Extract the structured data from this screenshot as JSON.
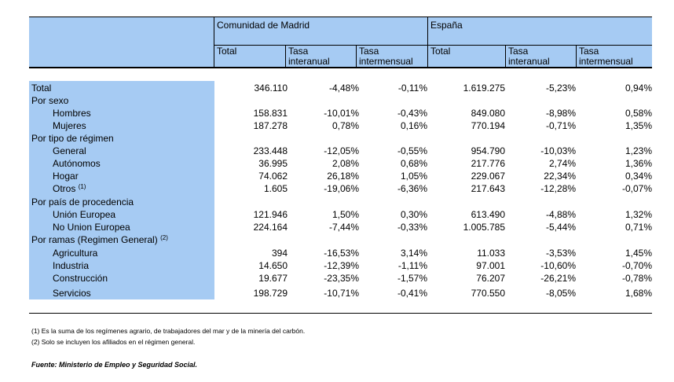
{
  "header": {
    "region1": "Comunidad de Madrid",
    "region2": "España",
    "col_total": "Total",
    "col_interanual_1": "Tasa",
    "col_interanual_2": "interanual",
    "col_intermensual_1": "Tasa",
    "col_intermensual_2": "intermensual"
  },
  "rows": [
    {
      "label": "Total",
      "sup": "",
      "values": [
        "346.110",
        "-4,48%",
        "-0,11%",
        "1.619.275",
        "-5,23%",
        "0,94%"
      ]
    },
    {
      "label": "Por sexo",
      "sup": "",
      "values": [
        "",
        "",
        "",
        "",
        "",
        ""
      ]
    },
    {
      "label": "Hombres",
      "sup": "",
      "values": [
        "158.831",
        "-10,01%",
        "-0,43%",
        "849.080",
        "-8,98%",
        "0,58%"
      ]
    },
    {
      "label": "Mujeres",
      "sup": "",
      "values": [
        "187.278",
        "0,78%",
        "0,16%",
        "770.194",
        "-0,71%",
        "1,35%"
      ]
    },
    {
      "label": "Por tipo de régimen",
      "sup": "",
      "values": [
        "",
        "",
        "",
        "",
        "",
        ""
      ]
    },
    {
      "label": "General",
      "sup": "",
      "values": [
        "233.448",
        "-12,05%",
        "-0,55%",
        "954.790",
        "-10,03%",
        "1,23%"
      ]
    },
    {
      "label": "Autónomos",
      "sup": "",
      "values": [
        "36.995",
        "2,08%",
        "0,68%",
        "217.776",
        "2,74%",
        "1,36%"
      ]
    },
    {
      "label": "Hogar",
      "sup": "",
      "values": [
        "74.062",
        "26,18%",
        "1,05%",
        "229.067",
        "22,34%",
        "0,34%"
      ]
    },
    {
      "label": "Otros",
      "sup": "(1)",
      "values": [
        "1.605",
        "-19,06%",
        "-6,36%",
        "217.643",
        "-12,28%",
        "-0,07%"
      ]
    },
    {
      "label": "Por país de procedencia",
      "sup": "",
      "values": [
        "",
        "",
        "",
        "",
        "",
        ""
      ]
    },
    {
      "label": "Unión Europea",
      "sup": "",
      "values": [
        "121.946",
        "1,50%",
        "0,30%",
        "613.490",
        "-4,88%",
        "1,32%"
      ]
    },
    {
      "label": "No Union Europea",
      "sup": "",
      "values": [
        "224.164",
        "-7,44%",
        "-0,33%",
        "1.005.785",
        "-5,44%",
        "0,71%"
      ]
    },
    {
      "label": "Por ramas (Regimen General)",
      "sup": "(2)",
      "values": [
        "",
        "",
        "",
        "",
        "",
        ""
      ]
    },
    {
      "label": "Agricultura",
      "sup": "",
      "values": [
        "394",
        "-16,53%",
        "3,14%",
        "11.033",
        "-3,53%",
        "1,45%"
      ]
    },
    {
      "label": "Industria",
      "sup": "",
      "values": [
        "14.650",
        "-12,39%",
        "-1,11%",
        "97.001",
        "-10,60%",
        "-0,70%"
      ]
    },
    {
      "label": "Construcción",
      "sup": "",
      "values": [
        "19.677",
        "-23,35%",
        "-1,57%",
        "76.207",
        "-26,21%",
        "-0,78%"
      ]
    },
    {
      "label": "Servicios",
      "sup": "",
      "values": [
        "198.729",
        "-10,71%",
        "-0,41%",
        "770.550",
        "-8,05%",
        "1,68%"
      ]
    }
  ],
  "notes": {
    "note1": "(1) Es la suma de los regímenes  agrario, de trabajadores del mar y de la minería del carbón.",
    "note2": "(2) Solo se incluyen los afiliados en el régimen general.",
    "source": "Fuente: Ministerio de Empleo y Seguridad Social."
  }
}
